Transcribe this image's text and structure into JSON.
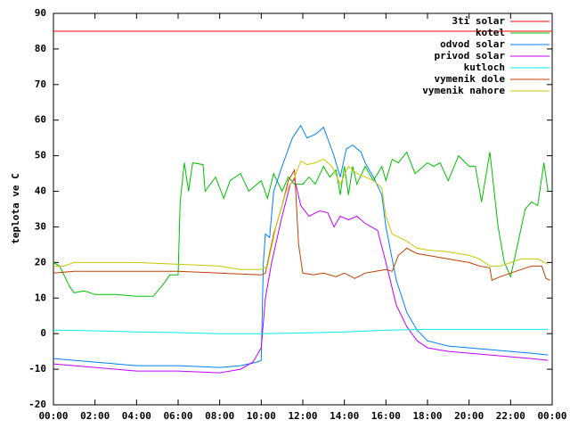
{
  "chart_data": {
    "type": "line",
    "ylabel": "teplota ve C",
    "xlim": [
      0,
      24
    ],
    "ylim": [
      -20,
      90
    ],
    "xticks": [
      {
        "value": 0,
        "label": "00:00"
      },
      {
        "value": 2,
        "label": "02:00"
      },
      {
        "value": 4,
        "label": "04:00"
      },
      {
        "value": 6,
        "label": "06:00"
      },
      {
        "value": 8,
        "label": "08:00"
      },
      {
        "value": 10,
        "label": "10:00"
      },
      {
        "value": 12,
        "label": "12:00"
      },
      {
        "value": 14,
        "label": "14:00"
      },
      {
        "value": 16,
        "label": "16:00"
      },
      {
        "value": 18,
        "label": "18:00"
      },
      {
        "value": 20,
        "label": "20:00"
      },
      {
        "value": 22,
        "label": "22:00"
      },
      {
        "value": 24,
        "label": "00:00"
      }
    ],
    "yticks": [
      -20,
      -10,
      0,
      10,
      20,
      30,
      40,
      50,
      60,
      70,
      80,
      90
    ],
    "grid": false,
    "legend": "top-right",
    "series": [
      {
        "name": "3ti solar",
        "color": "#ff0000",
        "x": [
          0,
          24
        ],
        "values": [
          85,
          85
        ]
      },
      {
        "name": "kotel",
        "color": "#00c000",
        "x": [
          0,
          0.3,
          0.8,
          1,
          1.5,
          2,
          3,
          4,
          4.8,
          5.3,
          5.6,
          6,
          6.1,
          6.3,
          6.5,
          6.7,
          7.2,
          7.3,
          7.8,
          8.2,
          8.5,
          9,
          9.4,
          10,
          10.3,
          10.6,
          11,
          11.3,
          11.6,
          12,
          12.3,
          12.6,
          13,
          13.3,
          13.6,
          13.8,
          14,
          14.2,
          14.4,
          14.6,
          15,
          15.4,
          15.8,
          16,
          16.3,
          16.6,
          17,
          17.4,
          18,
          18.3,
          18.6,
          19,
          19.5,
          20,
          20.3,
          20.6,
          21,
          21.4,
          21.7,
          22,
          22.3,
          22.7,
          23,
          23.3,
          23.6,
          23.8
        ],
        "values": [
          20,
          19,
          13,
          11.5,
          12,
          11,
          11,
          10.5,
          10.5,
          14,
          16.5,
          16.5,
          37,
          48,
          40,
          48,
          47.5,
          40,
          44,
          38,
          43,
          45,
          40,
          43,
          38,
          45,
          40,
          44,
          42,
          42,
          44,
          42,
          47,
          44,
          46,
          39,
          47,
          39,
          47,
          42,
          47,
          43,
          47,
          43,
          49,
          48,
          51,
          45,
          48,
          47,
          48,
          43,
          50,
          47,
          47,
          37,
          51,
          30,
          20,
          16,
          24,
          35,
          37,
          36,
          48,
          40
        ]
      },
      {
        "name": "odvod solar",
        "color": "#0080ff",
        "x": [
          0,
          2,
          4,
          6,
          8,
          9,
          9.8,
          10,
          10.1,
          10.2,
          10.4,
          10.6,
          11,
          11.5,
          11.9,
          12.2,
          12.6,
          13,
          13.5,
          13.8,
          14.1,
          14.4,
          14.8,
          15,
          15.4,
          15.8,
          16,
          16.5,
          17,
          17.5,
          18,
          19,
          20,
          21,
          22,
          23,
          23.8
        ],
        "values": [
          -7,
          -8,
          -9,
          -9,
          -9.5,
          -9,
          -8,
          -7.5,
          20,
          28,
          27,
          40,
          47,
          55,
          58.5,
          55,
          56,
          58,
          50,
          44,
          52,
          53,
          51,
          48,
          44,
          39,
          30,
          15,
          6,
          1,
          -2,
          -3.5,
          -4,
          -4.5,
          -5,
          -5.5,
          -6
        ]
      },
      {
        "name": "privod solar",
        "color": "#c000ff",
        "x": [
          0,
          2,
          4,
          6,
          8,
          9,
          9.6,
          10,
          10.2,
          10.5,
          11,
          11.4,
          11.6,
          11.9,
          12.3,
          12.8,
          13.2,
          13.5,
          13.8,
          14.2,
          14.6,
          15,
          15.6,
          16,
          16.5,
          17,
          17.5,
          18,
          19,
          20,
          21,
          22,
          23,
          23.8
        ],
        "values": [
          -8.5,
          -9.5,
          -10.5,
          -10.5,
          -11,
          -10,
          -8,
          -4,
          10,
          20,
          33,
          42,
          43.5,
          36,
          33,
          34.5,
          34,
          30,
          33,
          32,
          33,
          31,
          29,
          20,
          8,
          2,
          -2,
          -4,
          -5,
          -5.5,
          -6,
          -6.5,
          -7,
          -7.5
        ]
      },
      {
        "name": "kutloch",
        "color": "#00eeee",
        "x": [
          0,
          2,
          4,
          6,
          8,
          10,
          12,
          14,
          16,
          18,
          20,
          22,
          23.8
        ],
        "values": [
          1,
          0.8,
          0.5,
          0.3,
          0,
          0,
          0.2,
          0.5,
          1,
          1.2,
          1.2,
          1.2,
          1.2
        ]
      },
      {
        "name": "vymenik dole",
        "color": "#c04000",
        "x": [
          0,
          1,
          2,
          4,
          6,
          8,
          10,
          10.2,
          10.6,
          11,
          11.3,
          11.6,
          11.8,
          12,
          12.5,
          13,
          13.6,
          14,
          14.5,
          15,
          15.5,
          16,
          16.3,
          16.6,
          17,
          17.5,
          18,
          19,
          20,
          20.5,
          21,
          21.1,
          21.5,
          22,
          22.5,
          23,
          23.5,
          23.7,
          23.9
        ],
        "values": [
          17,
          17.5,
          17.5,
          17.5,
          17.5,
          17,
          16.5,
          17,
          28,
          36,
          43,
          46,
          25,
          17,
          16.5,
          17,
          16,
          17,
          15.5,
          17,
          17.5,
          18,
          17.5,
          22,
          24,
          22.5,
          22,
          21,
          20,
          19,
          18.5,
          15,
          16,
          17,
          18,
          19,
          19,
          15.5,
          15
        ]
      },
      {
        "name": "vymenik nahore",
        "color": "#c8c800",
        "x": [
          0,
          0.5,
          1,
          2,
          4,
          6,
          8,
          8.5,
          9,
          10,
          10.3,
          10.7,
          11.2,
          11.6,
          11.9,
          12.2,
          12.6,
          13,
          13.4,
          13.8,
          14.2,
          14.6,
          15,
          15.4,
          15.8,
          16,
          16.3,
          17,
          17.5,
          18,
          19,
          20,
          20.5,
          21,
          21.5,
          22,
          22.5,
          23.3,
          23.8
        ],
        "values": [
          19,
          19,
          20,
          20,
          20,
          19.5,
          19,
          18.5,
          18,
          18,
          19,
          30,
          40,
          44,
          48.5,
          47.5,
          48,
          49,
          47,
          42,
          47,
          45,
          44,
          43,
          41,
          33,
          28,
          26,
          24,
          23.5,
          23,
          22,
          21,
          19,
          19,
          20,
          21,
          21,
          19.5
        ]
      }
    ]
  }
}
